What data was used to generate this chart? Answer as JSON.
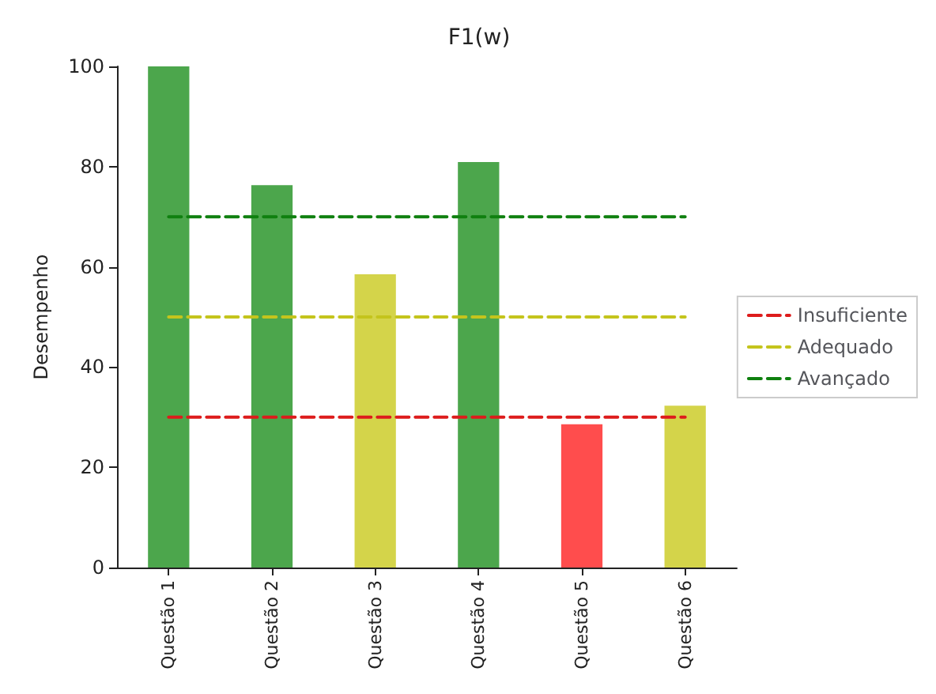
{
  "chart_data": {
    "type": "bar",
    "title": "F1(w)",
    "ylabel": "Desempenho",
    "categories": [
      "Questão 1",
      "Questão 2",
      "Questão 3",
      "Questão 4",
      "Questão 5",
      "Questão 6"
    ],
    "series": [
      {
        "values": [
          100,
          76.3,
          58.5,
          80.9,
          28.6,
          32.3
        ],
        "colors": [
          "#4ca64c",
          "#4ca64c",
          "#d4d44a",
          "#4ca64c",
          "#ff4d4d",
          "#d4d44a"
        ]
      },
      {
        "type": "line",
        "name": "Insuficiente",
        "color": "#dd1c1c",
        "values": [
          30,
          30,
          30,
          30,
          30,
          30
        ],
        "line_style": "dashed",
        "marker": "none"
      },
      {
        "type": "line",
        "name": "Adequado",
        "color": "#c4c41c",
        "values": [
          50,
          50,
          50,
          50,
          50,
          50
        ],
        "line_style": "dashed",
        "marker": "none"
      },
      {
        "type": "line",
        "name": "Avançado",
        "color": "#0f800f",
        "values": [
          70,
          70,
          70,
          70,
          70,
          70
        ],
        "line_style": "dashed",
        "marker": "none"
      }
    ],
    "ylim": [
      0,
      100
    ],
    "yticks": [
      0,
      20,
      40,
      60,
      80,
      100
    ],
    "grid": false,
    "legend": "right"
  }
}
